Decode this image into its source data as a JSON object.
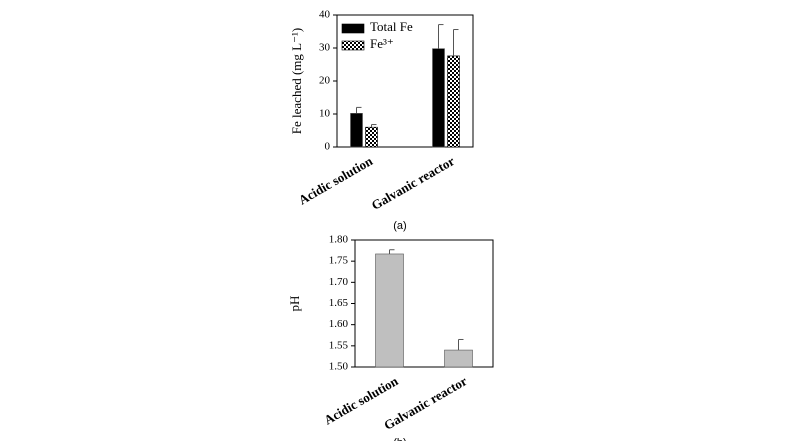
{
  "chart_data": [
    {
      "type": "bar",
      "caption": "(a)",
      "ylabel": "Fe leached (mg L⁻¹)",
      "categories": [
        "Acidic solution",
        "Galvanic reactor"
      ],
      "series": [
        {
          "name": "Total Fe",
          "color": "#000000",
          "values": [
            10.2,
            29.8
          ],
          "errors": [
            1.8,
            7.3
          ]
        },
        {
          "name": "Fe³⁺",
          "color": "#000000",
          "hatch": "checker",
          "values": [
            6,
            27.6
          ],
          "errors": [
            0.8,
            8
          ]
        }
      ],
      "ylim": [
        0,
        40
      ],
      "yticks": [
        0,
        10,
        20,
        30,
        40
      ],
      "legend": "upper-left"
    },
    {
      "type": "bar",
      "caption": "(b)",
      "ylabel": "pH",
      "categories": [
        "Acidic solution",
        "Galvanic reactor"
      ],
      "series": [
        {
          "color": "#bfbfbf",
          "values": [
            1.767,
            1.54
          ],
          "errors": [
            0.01,
            0.025
          ]
        }
      ],
      "ylim": [
        1.5,
        1.8
      ],
      "yticks": [
        {
          "value": 1.5,
          "label": "1.50"
        },
        {
          "value": 1.55,
          "label": "1.55"
        },
        {
          "value": 1.6,
          "label": "1.60"
        },
        {
          "value": 1.65,
          "label": "1.65"
        },
        {
          "value": 1.7,
          "label": "1.70"
        },
        {
          "value": 1.75,
          "label": "1.75"
        },
        {
          "value": 1.8,
          "label": "1.80"
        }
      ]
    }
  ]
}
